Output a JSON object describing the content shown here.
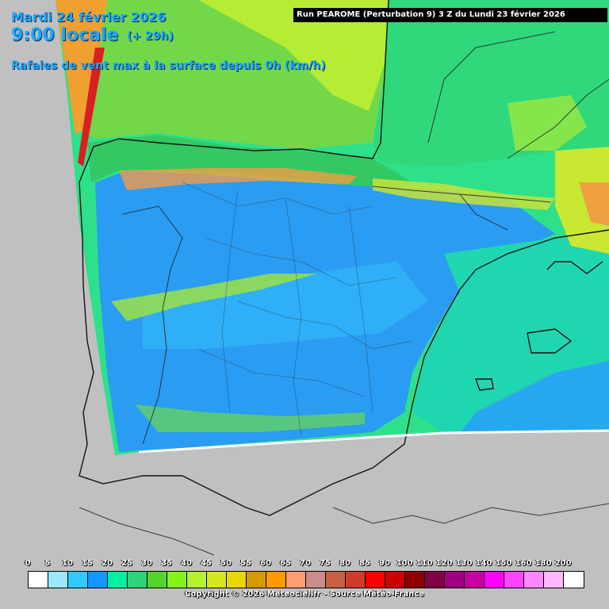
{
  "header": {
    "date": "Mardi 24 février 2026",
    "time": "9:00 locale",
    "lead": "(+ 29h)",
    "parameter": "Rafales de vent max à la surface depuis 0h (km/h)"
  },
  "run_info": "Run PEAROME (Perturbation 9) 3 Z du Lundi 23 février 2026",
  "legend": {
    "ticks": [
      "0",
      "5",
      "10",
      "15",
      "20",
      "25",
      "30",
      "35",
      "40",
      "45",
      "50",
      "55",
      "60",
      "65",
      "70",
      "75",
      "80",
      "85",
      "90",
      "100",
      "110",
      "120",
      "130",
      "140",
      "150",
      "160",
      "180",
      "200"
    ],
    "colors": [
      "#ffffff",
      "#9be8ff",
      "#30c8ff",
      "#1496ff",
      "#00f0a0",
      "#2ed27a",
      "#56d32c",
      "#86f21c",
      "#b7f02c",
      "#d6e81a",
      "#e8d800",
      "#d49a00",
      "#ff9a00",
      "#ff9c72",
      "#ca8c8c",
      "#c66040",
      "#d03c2c",
      "#ff0000",
      "#cc0000",
      "#8c0000",
      "#820046",
      "#a00080",
      "#c800a0",
      "#ff00ff",
      "#ff44ff",
      "#ff88ff",
      "#ffb8ff",
      "#ffffff"
    ]
  },
  "copyright": "Copyright © 2026 Meteociel.fr - Source Météo-France"
}
